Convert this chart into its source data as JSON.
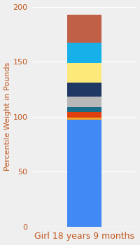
{
  "title": "",
  "xlabel": "Girl 18 years 9 months",
  "ylabel": "Percentile Weight in Pounds",
  "ylim": [
    0,
    200
  ],
  "yticks": [
    0,
    50,
    100,
    150,
    200
  ],
  "background_color": "#efefef",
  "bar_category": "Girl 18 years\n9 months",
  "segments": [
    {
      "label": "blue_base",
      "value": 97,
      "color": "#4189f5"
    },
    {
      "label": "orange",
      "value": 2,
      "color": "#f5a523"
    },
    {
      "label": "red",
      "value": 5,
      "color": "#e04010"
    },
    {
      "label": "teal",
      "value": 5,
      "color": "#1a6e8a"
    },
    {
      "label": "gray",
      "value": 9,
      "color": "#b8b8b8"
    },
    {
      "label": "navy",
      "value": 13,
      "color": "#1f3864"
    },
    {
      "label": "yellow",
      "value": 18,
      "color": "#fde87a"
    },
    {
      "label": "cyan",
      "value": 18,
      "color": "#18b0e8"
    },
    {
      "label": "brown",
      "value": 26,
      "color": "#bf6047"
    }
  ],
  "xlabel_fontsize": 9,
  "ylabel_fontsize": 8,
  "tick_fontsize": 8,
  "bar_width": 0.4,
  "label_color": "#c05820",
  "tick_color": "#c05820",
  "grid_color": "#ffffff",
  "grid_linewidth": 1.0
}
